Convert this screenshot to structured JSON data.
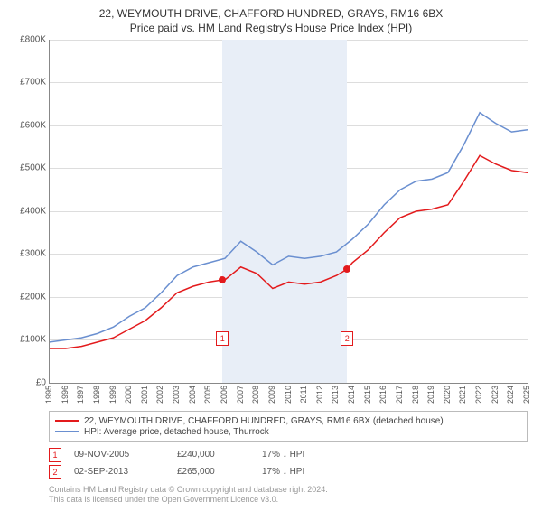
{
  "title_line1": "22, WEYMOUTH DRIVE, CHAFFORD HUNDRED, GRAYS, RM16 6BX",
  "title_line2": "Price paid vs. HM Land Registry's House Price Index (HPI)",
  "chart": {
    "type": "line",
    "background_color": "#ffffff",
    "grid_color": "#dddddd",
    "shade_color": "#e8eef7",
    "axis_color": "#888888",
    "label_color": "#555555",
    "label_fontsize": 10,
    "x_min_year": 1995,
    "x_max_year": 2025,
    "x_tick_years": [
      1995,
      1996,
      1997,
      1998,
      1999,
      2000,
      2001,
      2002,
      2003,
      2004,
      2005,
      2006,
      2007,
      2008,
      2009,
      2010,
      2011,
      2012,
      2013,
      2014,
      2015,
      2016,
      2017,
      2018,
      2019,
      2020,
      2021,
      2022,
      2023,
      2024,
      2025
    ],
    "y_min": 0,
    "y_max": 800000,
    "y_tick_step": 100000,
    "y_tick_labels": [
      "£0",
      "£100K",
      "£200K",
      "£300K",
      "£400K",
      "£500K",
      "£600K",
      "£700K",
      "£800K"
    ],
    "series": [
      {
        "name": "property_price",
        "label": "22, WEYMOUTH DRIVE, CHAFFORD HUNDRED, GRAYS, RM16 6BX (detached house)",
        "color": "#e31a1c",
        "line_width": 1.5,
        "points": [
          [
            1995,
            80000
          ],
          [
            1996,
            80000
          ],
          [
            1997,
            85000
          ],
          [
            1998,
            95000
          ],
          [
            1999,
            105000
          ],
          [
            2000,
            125000
          ],
          [
            2001,
            145000
          ],
          [
            2002,
            175000
          ],
          [
            2003,
            210000
          ],
          [
            2004,
            225000
          ],
          [
            2005,
            235000
          ],
          [
            2005.85,
            240000
          ],
          [
            2006,
            240000
          ],
          [
            2007,
            270000
          ],
          [
            2008,
            255000
          ],
          [
            2009,
            220000
          ],
          [
            2010,
            235000
          ],
          [
            2011,
            230000
          ],
          [
            2012,
            235000
          ],
          [
            2013,
            250000
          ],
          [
            2013.67,
            265000
          ],
          [
            2014,
            280000
          ],
          [
            2015,
            310000
          ],
          [
            2016,
            350000
          ],
          [
            2017,
            385000
          ],
          [
            2018,
            400000
          ],
          [
            2019,
            405000
          ],
          [
            2020,
            415000
          ],
          [
            2021,
            470000
          ],
          [
            2022,
            530000
          ],
          [
            2023,
            510000
          ],
          [
            2024,
            495000
          ],
          [
            2025,
            490000
          ]
        ]
      },
      {
        "name": "hpi_thurrock",
        "label": "HPI: Average price, detached house, Thurrock",
        "color": "#6a8fd0",
        "line_width": 1.5,
        "points": [
          [
            1995,
            95000
          ],
          [
            1996,
            100000
          ],
          [
            1997,
            105000
          ],
          [
            1998,
            115000
          ],
          [
            1999,
            130000
          ],
          [
            2000,
            155000
          ],
          [
            2001,
            175000
          ],
          [
            2002,
            210000
          ],
          [
            2003,
            250000
          ],
          [
            2004,
            270000
          ],
          [
            2005,
            280000
          ],
          [
            2006,
            290000
          ],
          [
            2007,
            330000
          ],
          [
            2008,
            305000
          ],
          [
            2009,
            275000
          ],
          [
            2010,
            295000
          ],
          [
            2011,
            290000
          ],
          [
            2012,
            295000
          ],
          [
            2013,
            305000
          ],
          [
            2014,
            335000
          ],
          [
            2015,
            370000
          ],
          [
            2016,
            415000
          ],
          [
            2017,
            450000
          ],
          [
            2018,
            470000
          ],
          [
            2019,
            475000
          ],
          [
            2020,
            490000
          ],
          [
            2021,
            555000
          ],
          [
            2022,
            630000
          ],
          [
            2023,
            605000
          ],
          [
            2024,
            585000
          ],
          [
            2025,
            590000
          ]
        ]
      }
    ],
    "markers": [
      {
        "n": "1",
        "year": 2005.85,
        "value": 240000,
        "dot_color": "#e31a1c",
        "flag_border": "#e31a1c",
        "flag_top_y": 120000
      },
      {
        "n": "2",
        "year": 2013.67,
        "value": 265000,
        "dot_color": "#e31a1c",
        "flag_border": "#e31a1c",
        "flag_top_y": 120000
      }
    ],
    "shade_start_year": 2005.85,
    "shade_end_year": 2013.67
  },
  "legend": {
    "rows": [
      {
        "color": "#e31a1c",
        "label": "22, WEYMOUTH DRIVE, CHAFFORD HUNDRED, GRAYS, RM16 6BX (detached house)"
      },
      {
        "color": "#6a8fd0",
        "label": "HPI: Average price, detached house, Thurrock"
      }
    ]
  },
  "notes": [
    {
      "n": "1",
      "color": "#e31a1c",
      "date": "09-NOV-2005",
      "price": "£240,000",
      "delta": "17% ↓ HPI"
    },
    {
      "n": "2",
      "color": "#e31a1c",
      "date": "02-SEP-2013",
      "price": "£265,000",
      "delta": "17% ↓ HPI"
    }
  ],
  "footer_line1": "Contains HM Land Registry data © Crown copyright and database right 2024.",
  "footer_line2": "This data is licensed under the Open Government Licence v3.0."
}
